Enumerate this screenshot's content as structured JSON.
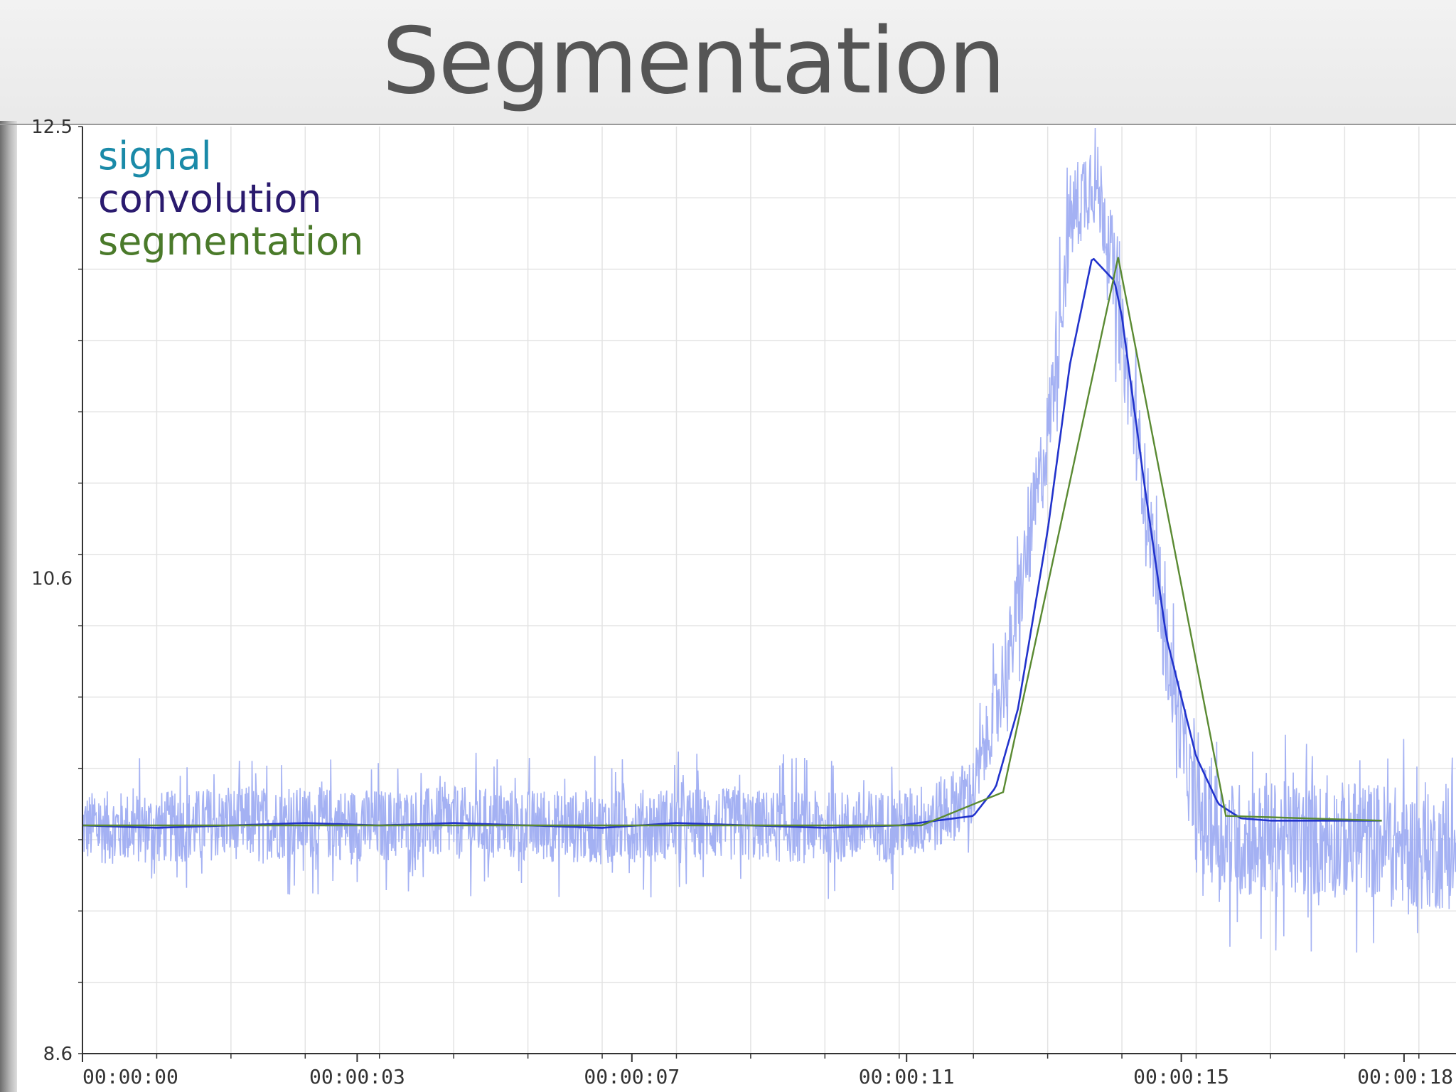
{
  "slide": {
    "title": "Segmentation"
  },
  "colors": {
    "signal": "#9aa8f2",
    "convolution": "#2233cc",
    "segmentation": "#5a8a32",
    "legend_signal": "#1a8aa8",
    "legend_convolution": "#2a1a6e",
    "legend_segmentation": "#4a7a2a"
  },
  "chart_data": {
    "type": "line",
    "title": "",
    "xlabel": "",
    "ylabel": "",
    "ylim": [
      8.6,
      12.5
    ],
    "xlim": [
      0,
      18.5
    ],
    "x_unit": "seconds",
    "y_tick_labels": [
      "12.5",
      "10.6",
      "8.6"
    ],
    "y_tick_values": [
      12.5,
      10.6,
      8.6
    ],
    "x_tick_labels": [
      "00:00:00",
      "00:00:03",
      "00:00:07",
      "00:00:11",
      "00:00:15",
      "00:00:18"
    ],
    "x_tick_values": [
      0,
      3.7,
      7.4,
      11.1,
      14.8,
      17.8
    ],
    "grid": true,
    "legend": {
      "position": "top-left",
      "entries": [
        "signal",
        "convolution",
        "segmentation"
      ]
    },
    "series": [
      {
        "name": "signal",
        "style": "noisy",
        "x": [
          0,
          1,
          2,
          3,
          4,
          5,
          6,
          7,
          8,
          9,
          10,
          11,
          11.5,
          12,
          12.5,
          13,
          13.3,
          13.6,
          13.8,
          14,
          14.3,
          14.6,
          15,
          15.5,
          16,
          16.5,
          17,
          17.5,
          18,
          18.5
        ],
        "values": [
          9.55,
          9.55,
          9.57,
          9.57,
          9.56,
          9.57,
          9.56,
          9.55,
          9.57,
          9.56,
          9.55,
          9.56,
          9.6,
          9.7,
          10.3,
          11.2,
          12.1,
          12.3,
          12.1,
          11.6,
          11.0,
          10.3,
          9.6,
          9.5,
          9.5,
          9.5,
          9.5,
          9.5,
          9.45,
          9.45
        ],
        "noise_amplitude": 0.22
      },
      {
        "name": "convolution",
        "x": [
          0,
          1,
          2,
          3,
          4,
          5,
          6,
          7,
          8,
          9,
          10,
          11,
          11.5,
          12,
          12.3,
          12.6,
          13,
          13.3,
          13.6,
          13.9,
          14,
          14.3,
          14.6,
          15,
          15.3,
          15.6,
          16,
          16.5,
          17,
          17.5,
          18
        ],
        "values": [
          9.56,
          9.55,
          9.56,
          9.57,
          9.56,
          9.57,
          9.56,
          9.55,
          9.57,
          9.56,
          9.55,
          9.56,
          9.58,
          9.6,
          9.72,
          10.05,
          10.8,
          11.5,
          11.95,
          11.85,
          11.7,
          11.0,
          10.35,
          9.85,
          9.65,
          9.59,
          9.58,
          9.58,
          9.58,
          9.58,
          9.58
        ],
        "x_range": [
          0,
          17.5
        ]
      },
      {
        "name": "segmentation",
        "x": [
          0,
          11.3,
          12.4,
          13.95,
          15.4,
          17.5
        ],
        "values": [
          9.56,
          9.56,
          9.7,
          11.95,
          9.6,
          9.58
        ]
      }
    ]
  }
}
